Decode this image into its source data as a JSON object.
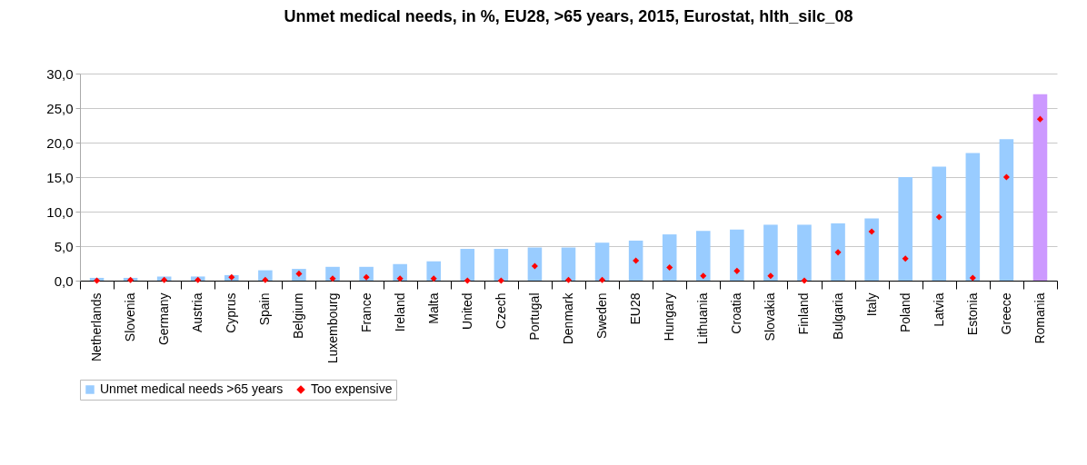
{
  "chart_data": {
    "type": "bar",
    "title": "Unmet medical needs, in %, EU28, >65 years, 2015, Eurostat, hlth_silc_08",
    "categories": [
      "Netherlands",
      "Slovenia",
      "Germany",
      "Austria",
      "Cyprus",
      "Spain",
      "Belgium",
      "Luxembourg",
      "France",
      "Ireland",
      "Malta",
      "United",
      "Czech",
      "Portugal",
      "Denmark",
      "Sweden",
      "EU28",
      "Hungary",
      "Lithuania",
      "Croatia",
      "Slovakia",
      "Finland",
      "Bulgaria",
      "Italy",
      "Poland",
      "Latvia",
      "Estonia",
      "Greece",
      "Romania"
    ],
    "series": [
      {
        "name": "Unmet medical needs >65 years",
        "type": "bar",
        "color": "#99ccff",
        "colors": [
          "#99ccff",
          "#99ccff",
          "#99ccff",
          "#99ccff",
          "#99ccff",
          "#99ccff",
          "#99ccff",
          "#99ccff",
          "#99ccff",
          "#99ccff",
          "#99ccff",
          "#99ccff",
          "#99ccff",
          "#99ccff",
          "#99ccff",
          "#99ccff",
          "#99ccff",
          "#99ccff",
          "#99ccff",
          "#99ccff",
          "#99ccff",
          "#99ccff",
          "#99ccff",
          "#99ccff",
          "#99ccff",
          "#99ccff",
          "#99ccff",
          "#99ccff",
          "#cc99ff"
        ],
        "values": [
          0.4,
          0.4,
          0.6,
          0.6,
          0.8,
          1.5,
          1.7,
          2.0,
          2.0,
          2.4,
          2.8,
          4.6,
          4.6,
          4.8,
          4.8,
          5.5,
          5.8,
          6.7,
          7.2,
          7.4,
          8.1,
          8.1,
          8.3,
          9.0,
          15.0,
          16.5,
          18.5,
          20.5,
          27.0
        ]
      },
      {
        "name": "Too expensive",
        "type": "scatter",
        "color": "#ff0000",
        "values": [
          0.0,
          0.1,
          0.1,
          0.1,
          0.5,
          0.1,
          1.0,
          0.3,
          0.5,
          0.3,
          0.3,
          0.0,
          0.0,
          2.1,
          0.1,
          0.1,
          2.9,
          1.9,
          0.7,
          1.4,
          0.7,
          0.0,
          4.1,
          7.1,
          3.2,
          9.2,
          0.4,
          15.0,
          23.4
        ]
      }
    ],
    "marker": "diamond",
    "ylim": [
      0,
      30
    ],
    "yticks": [
      {
        "value": 0,
        "label": "0,0"
      },
      {
        "value": 5,
        "label": "5,0"
      },
      {
        "value": 10,
        "label": "10,0"
      },
      {
        "value": 15,
        "label": "15,0"
      },
      {
        "value": 20,
        "label": "20,0"
      },
      {
        "value": 25,
        "label": "25,0"
      },
      {
        "value": 30,
        "label": "30,0"
      }
    ],
    "grid": "y",
    "legend": "bottom"
  }
}
